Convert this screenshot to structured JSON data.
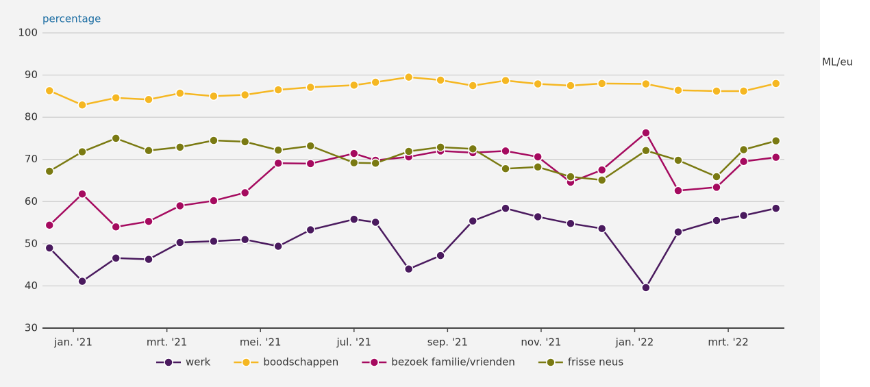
{
  "chart_data": {
    "type": "line",
    "y_axis_label": "percentage",
    "watermark": "ML/eu",
    "x": [
      -0.51,
      0.19,
      0.91,
      1.61,
      2.28,
      3.0,
      3.67,
      4.38,
      5.07,
      6.0,
      6.46,
      7.17,
      7.85,
      8.54,
      9.24,
      9.93,
      10.63,
      11.3,
      12.24,
      12.93,
      13.75,
      14.33,
      15.02
    ],
    "xlim": [
      -0.66,
      15.2
    ],
    "xticks": [
      {
        "value": 0,
        "label": "jan. '21"
      },
      {
        "value": 2,
        "label": "mrt. '21"
      },
      {
        "value": 4,
        "label": "mei. '21"
      },
      {
        "value": 6,
        "label": "jul. '21"
      },
      {
        "value": 8,
        "label": "sep. '21"
      },
      {
        "value": 10,
        "label": "nov. '21"
      },
      {
        "value": 12,
        "label": "jan. '22"
      },
      {
        "value": 14,
        "label": "mrt. '22"
      }
    ],
    "ylim": [
      30,
      100
    ],
    "yticks": [
      30,
      40,
      50,
      60,
      70,
      80,
      90,
      100
    ],
    "grid": true,
    "series": [
      {
        "name": "werk",
        "color": "#4a1a5e",
        "values": [
          49,
          41.1,
          46.6,
          46.3,
          50.3,
          50.6,
          51,
          49.4,
          53.3,
          55.8,
          55.1,
          44,
          47.2,
          55.4,
          58.4,
          56.4,
          54.8,
          53.6,
          39.6,
          52.8,
          55.5,
          56.7,
          58.4
        ]
      },
      {
        "name": "boodschappen",
        "color": "#f5b722",
        "values": [
          86.3,
          82.9,
          84.6,
          84.2,
          85.7,
          85,
          85.3,
          86.5,
          87.1,
          87.6,
          88.3,
          89.5,
          88.8,
          87.5,
          88.7,
          87.9,
          87.5,
          88,
          87.9,
          86.4,
          86.2,
          86.2,
          88
        ]
      },
      {
        "name": "bezoek familie/vrienden",
        "color": "#a50a5f",
        "values": [
          54.4,
          61.8,
          54,
          55.3,
          59,
          60.2,
          62.1,
          69.1,
          69,
          71.4,
          69.8,
          70.6,
          72,
          71.6,
          72,
          70.6,
          64.6,
          67.5,
          76.3,
          62.6,
          63.4,
          69.5,
          70.5
        ]
      },
      {
        "name": "frisse neus",
        "color": "#7a7a12",
        "values": [
          67.2,
          71.8,
          75,
          72.1,
          72.9,
          74.5,
          74.2,
          72.2,
          73.2,
          69.2,
          69.1,
          71.9,
          72.9,
          72.5,
          67.8,
          68.2,
          65.9,
          65.1,
          72.1,
          69.8,
          65.9,
          72.3,
          74.4
        ]
      }
    ]
  }
}
